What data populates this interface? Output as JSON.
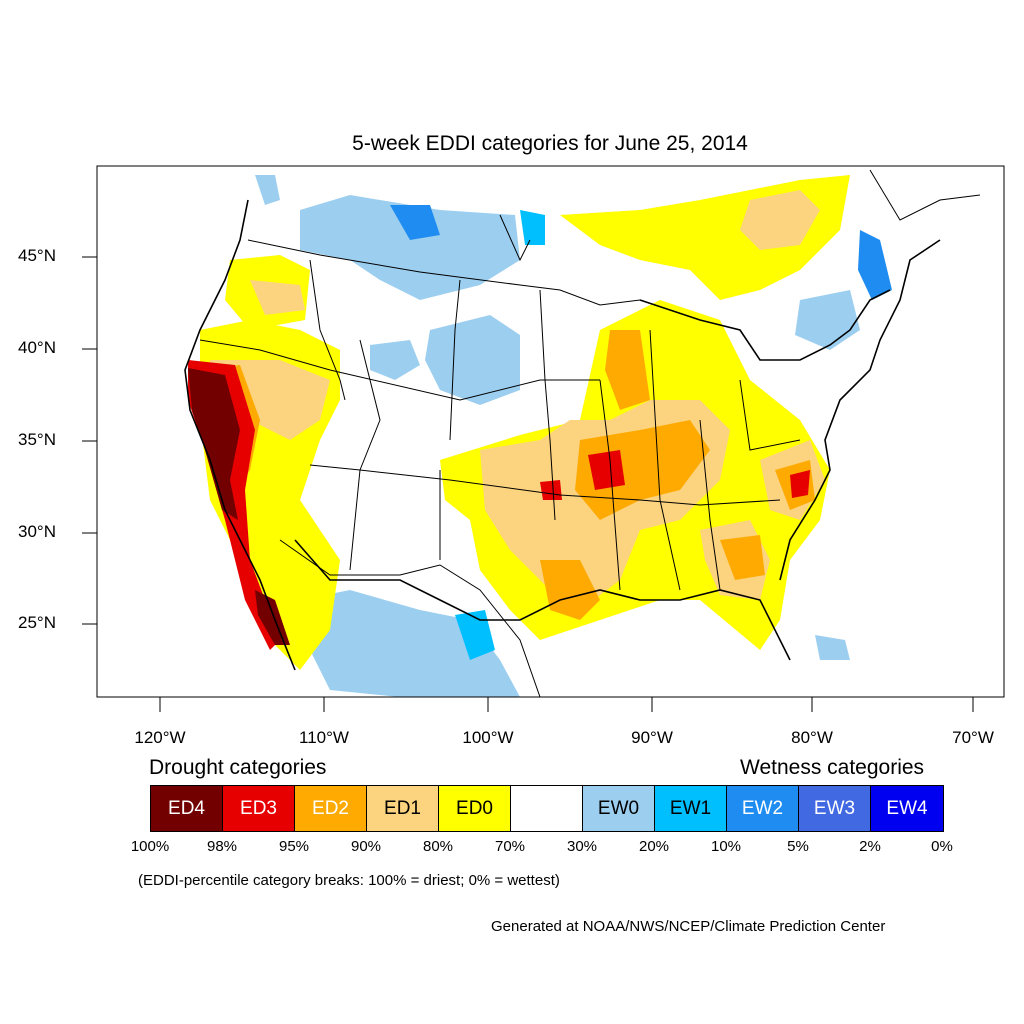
{
  "map": {
    "title": "5-week EDDI categories for June 25, 2014",
    "lat_ticks": [
      "45°N",
      "40°N",
      "35°N",
      "30°N",
      "25°N"
    ],
    "lon_ticks": [
      "120°W",
      "110°W",
      "100°W",
      "90°W",
      "80°W",
      "70°W"
    ]
  },
  "legend": {
    "drought_heading": "Drought categories",
    "wetness_heading": "Wetness categories",
    "categories": [
      {
        "label": "ED4",
        "color": "#730000",
        "text_color": "#ffffff"
      },
      {
        "label": "ED3",
        "color": "#e60000",
        "text_color": "#ffffff"
      },
      {
        "label": "ED2",
        "color": "#ffaa00",
        "text_color": "#ffffff"
      },
      {
        "label": "ED1",
        "color": "#fcd37f",
        "text_color": "#000000"
      },
      {
        "label": "ED0",
        "color": "#ffff00",
        "text_color": "#000000"
      },
      {
        "label": "",
        "color": "#ffffff",
        "text_color": "#000000"
      },
      {
        "label": "EW0",
        "color": "#9ccef0",
        "text_color": "#000000"
      },
      {
        "label": "EW1",
        "color": "#00bfff",
        "text_color": "#000000"
      },
      {
        "label": "EW2",
        "color": "#1e8cf0",
        "text_color": "#ffffff"
      },
      {
        "label": "EW3",
        "color": "#4169e1",
        "text_color": "#ffffff"
      },
      {
        "label": "EW4",
        "color": "#0000f0",
        "text_color": "#ffffff"
      }
    ],
    "percentiles": [
      "100%",
      "98%",
      "95%",
      "90%",
      "80%",
      "70%",
      "30%",
      "20%",
      "10%",
      "5%",
      "2%",
      "0%"
    ],
    "note": "(EDDI-percentile category breaks: 100% = driest; 0% = wettest)"
  },
  "credit": "Generated at NOAA/NWS/NCEP/Climate Prediction Center"
}
